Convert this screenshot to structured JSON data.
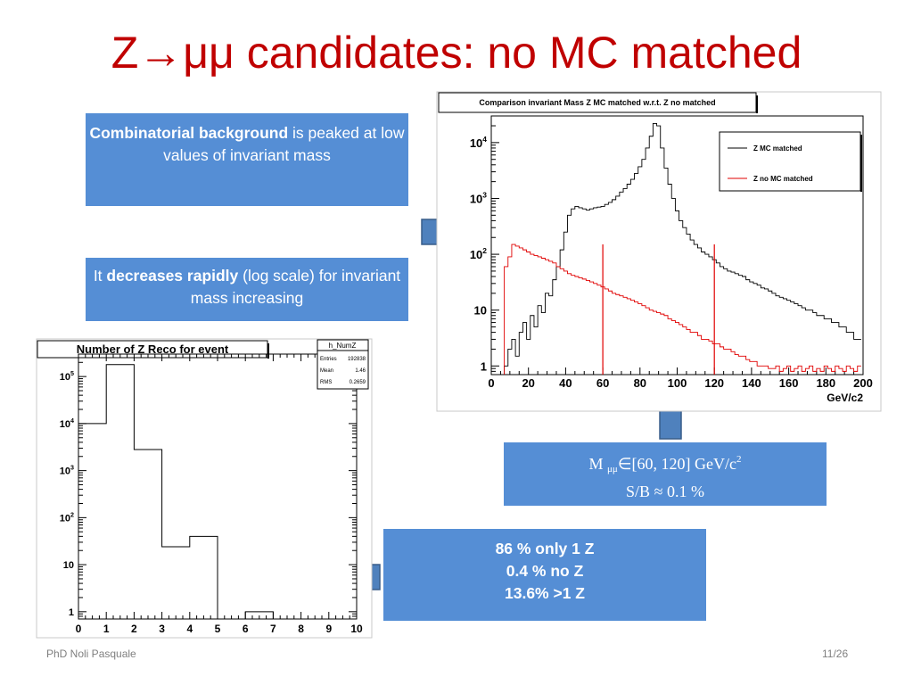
{
  "slide": {
    "title": "Z→μμ candidates: no MC matched",
    "box_combinatorial": {
      "bold": "Combinatorial background",
      "rest": " is peaked at low values  of invariant mass"
    },
    "box_decreases": {
      "pre": "It ",
      "bold": "decreases rapidly",
      "rest": " (log scale) for invariant mass increasing"
    },
    "box_window": {
      "m": "M ",
      "sub": "μμ",
      "range": "∈[60, 120] GeV/c",
      "sup": "2",
      "sb": "S/B ≈ 0.1 %"
    },
    "box_fractions": {
      "line1": "86 % only 1  Z",
      "line2": "0.4 % no Z",
      "line3": "13.6% >1 Z"
    },
    "footer_author": "PhD Noli Pasquale",
    "footer_page": "11/26"
  },
  "colors": {
    "title": "#c00000",
    "box": "#558ed5",
    "arrow": "#4f81bd",
    "series_matched": "#000000",
    "series_nomatch": "#e00000"
  },
  "chart_data": [
    {
      "type": "histogram",
      "title": "Comparison invariant Mass Z MC matched w.r.t. Z no matched",
      "xlabel": "GeV/c2",
      "xlim": [
        0,
        200
      ],
      "ylim": [
        0.7,
        30000
      ],
      "yscale": "log",
      "x_ticks": [
        "0",
        "20",
        "40",
        "60",
        "80",
        "100",
        "120",
        "140",
        "160",
        "180",
        "200"
      ],
      "x_tick_values": [
        0,
        20,
        40,
        60,
        80,
        100,
        120,
        140,
        160,
        180,
        200
      ],
      "y_ticks": [
        "1",
        "10",
        "10",
        "10",
        "10"
      ],
      "y_tick_sups": [
        "",
        "",
        "2",
        "3",
        "4"
      ],
      "y_tick_values": [
        1,
        10,
        100,
        1000,
        10000
      ],
      "legend": {
        "placement": "top-right",
        "entries": [
          "Z MC matched",
          "Z no MC matched"
        ]
      },
      "cut_lines": [
        60,
        120
      ],
      "series": [
        {
          "name": "Z MC matched",
          "x": [
            8,
            10,
            12,
            14,
            16,
            18,
            20,
            22,
            24,
            26,
            28,
            30,
            32,
            34,
            36,
            38,
            40,
            42,
            44,
            46,
            48,
            50,
            52,
            54,
            56,
            58,
            60,
            62,
            64,
            66,
            68,
            70,
            72,
            74,
            76,
            78,
            80,
            82,
            84,
            86,
            88,
            90,
            92,
            94,
            96,
            98,
            100,
            102,
            104,
            106,
            108,
            110,
            112,
            114,
            116,
            118,
            120,
            122,
            124,
            126,
            128,
            130,
            132,
            134,
            136,
            138,
            140,
            142,
            144,
            146,
            148,
            150,
            152,
            154,
            156,
            158,
            160,
            162,
            164,
            166,
            168,
            170,
            172,
            174,
            176,
            178,
            180,
            182,
            184,
            186,
            188,
            190,
            192,
            194,
            196,
            198
          ],
          "values": [
            1,
            2,
            3,
            1.5,
            4,
            6,
            3,
            8,
            5,
            12,
            9,
            20,
            18,
            35,
            60,
            120,
            250,
            500,
            650,
            720,
            680,
            650,
            620,
            650,
            680,
            700,
            720,
            780,
            850,
            950,
            1100,
            1300,
            1500,
            1800,
            2200,
            2800,
            3700,
            5000,
            8000,
            13000,
            22000,
            20000,
            8000,
            3500,
            1800,
            1000,
            600,
            400,
            300,
            230,
            180,
            150,
            130,
            110,
            100,
            90,
            80,
            70,
            60,
            55,
            50,
            48,
            45,
            42,
            40,
            35,
            32,
            30,
            28,
            25,
            24,
            22,
            20,
            18,
            17,
            16,
            15,
            14,
            13,
            12,
            11,
            10,
            10,
            9,
            8,
            8,
            7,
            7,
            6,
            6,
            5,
            5,
            4,
            4,
            3,
            3
          ]
        },
        {
          "name": "Z no MC matched",
          "x": [
            8,
            10,
            12,
            14,
            16,
            18,
            20,
            22,
            24,
            26,
            28,
            30,
            32,
            34,
            36,
            38,
            40,
            42,
            44,
            46,
            48,
            50,
            52,
            54,
            56,
            58,
            60,
            62,
            64,
            66,
            68,
            70,
            72,
            74,
            76,
            78,
            80,
            82,
            84,
            86,
            88,
            90,
            92,
            94,
            96,
            98,
            100,
            102,
            104,
            106,
            108,
            110,
            112,
            114,
            116,
            118,
            120,
            122,
            124,
            126,
            128,
            130,
            132,
            134,
            136,
            138,
            140,
            142,
            144,
            146,
            148,
            150,
            152,
            154,
            156,
            158,
            160,
            162,
            164,
            166,
            168,
            170,
            172,
            174,
            176,
            178,
            180,
            182,
            184,
            186,
            188,
            190,
            192,
            194,
            196,
            198
          ],
          "values": [
            60,
            90,
            150,
            140,
            130,
            120,
            110,
            100,
            95,
            90,
            85,
            80,
            75,
            70,
            60,
            55,
            50,
            45,
            42,
            40,
            38,
            36,
            34,
            32,
            30,
            28,
            26,
            24,
            22,
            20,
            19,
            18,
            17,
            16,
            15,
            14,
            13,
            12,
            11,
            10,
            9.5,
            9,
            8.5,
            8,
            7,
            6.5,
            6,
            5.5,
            5,
            4.5,
            4,
            4,
            3.5,
            3,
            3,
            2.8,
            2.5,
            2.5,
            2.2,
            2,
            2,
            1.8,
            1.6,
            1.5,
            1.5,
            1.3,
            1.2,
            1.2,
            1,
            1,
            1,
            0.9,
            0.9,
            1,
            0.8,
            0.9,
            1,
            0.8,
            0.9,
            1,
            0.8,
            0.9,
            1,
            0.8,
            0.9,
            0.8,
            1,
            0.9,
            0.8,
            1,
            0.9,
            0.8,
            1,
            0.9,
            0.8,
            1
          ]
        }
      ]
    },
    {
      "type": "histogram",
      "title": "Number of Z Reco for event",
      "xlim": [
        0,
        10
      ],
      "ylim": [
        0.7,
        300000
      ],
      "yscale": "log",
      "x_ticks": [
        "0",
        "1",
        "2",
        "3",
        "4",
        "5",
        "6",
        "7",
        "8",
        "9",
        "10"
      ],
      "x_tick_values": [
        0,
        1,
        2,
        3,
        4,
        5,
        6,
        7,
        8,
        9,
        10
      ],
      "y_ticks": [
        "1",
        "10",
        "10",
        "10",
        "10",
        "10"
      ],
      "y_tick_sups": [
        "",
        "",
        "2",
        "3",
        "4",
        "5"
      ],
      "y_tick_values": [
        1,
        10,
        100,
        1000,
        10000,
        100000
      ],
      "stats": {
        "name": "h_NumZ",
        "rows": [
          [
            "Entries",
            "192838"
          ],
          [
            "Mean",
            "1.46"
          ],
          [
            "RMS",
            "0.2659"
          ]
        ]
      },
      "bins": [
        0,
        1,
        2,
        3,
        4,
        5,
        6,
        7,
        8,
        9,
        10
      ],
      "values": [
        10000,
        180000,
        2800,
        24,
        40,
        0,
        1,
        0,
        0,
        0
      ]
    }
  ]
}
